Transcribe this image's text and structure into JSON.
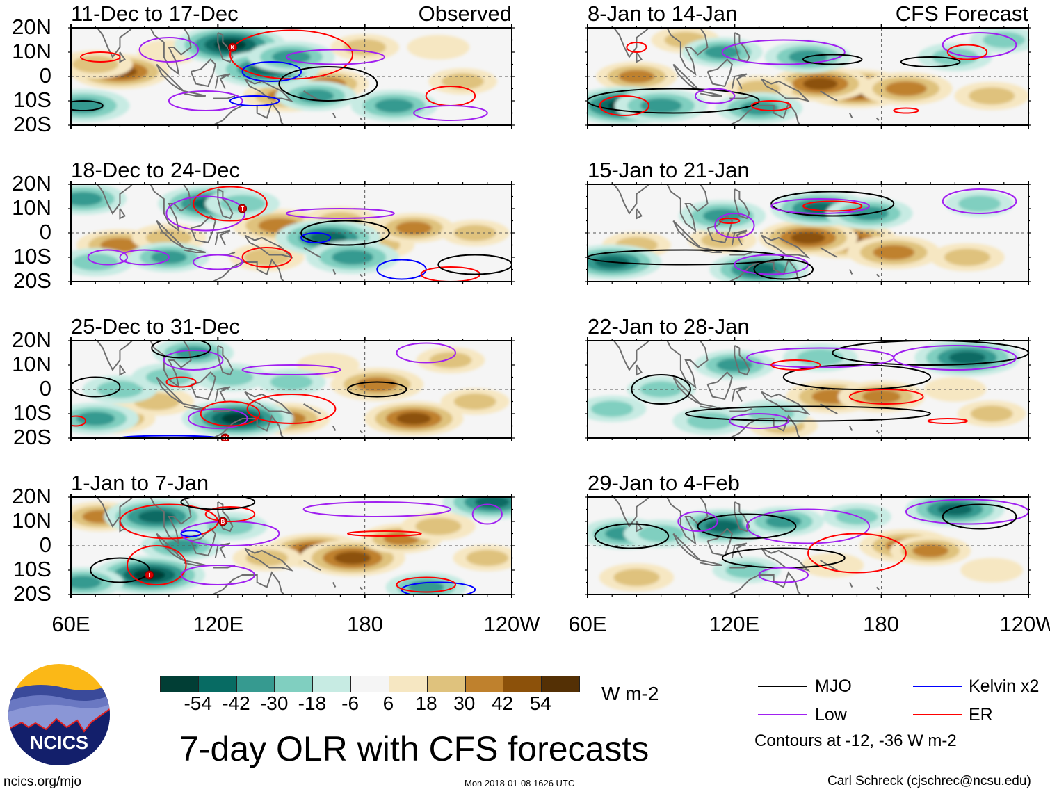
{
  "lat_labels": [
    "20N",
    "10N",
    "0",
    "10S",
    "20S"
  ],
  "lon_labels": [
    "60E",
    "120E",
    "180",
    "120W"
  ],
  "panels": [
    {
      "title": "11-Dec to 17-Dec",
      "tag": "Observed",
      "features": [
        [
          80,
          2,
          45
        ],
        [
          70,
          5,
          25
        ],
        [
          100,
          10,
          15
        ],
        [
          148,
          -8,
          35
        ],
        [
          165,
          -3,
          30
        ],
        [
          220,
          -2,
          20
        ],
        [
          125,
          13,
          -55
        ],
        [
          140,
          3,
          -50
        ],
        [
          150,
          8,
          -35
        ],
        [
          160,
          -8,
          -30
        ],
        [
          192,
          -12,
          -35
        ],
        [
          65,
          -12,
          -40
        ],
        [
          180,
          12,
          20
        ],
        [
          210,
          12,
          15
        ]
      ],
      "contours": [
        [
          "er",
          72,
          8,
          8,
          2
        ],
        [
          "er",
          150,
          9,
          25,
          10
        ],
        [
          "low",
          100,
          11,
          12,
          5
        ],
        [
          "low",
          115,
          -10,
          15,
          4
        ],
        [
          "kelvin",
          142,
          2,
          12,
          4
        ],
        [
          "kelvin",
          135,
          -10,
          10,
          2
        ],
        [
          "mjo",
          165,
          -3,
          20,
          7
        ],
        [
          "low",
          168,
          8,
          20,
          3
        ],
        [
          "mjo",
          65,
          -12,
          8,
          2
        ],
        [
          "er",
          215,
          -8,
          10,
          4
        ],
        [
          "low",
          215,
          -15,
          15,
          3
        ]
      ],
      "storms": [
        [
          "K",
          126,
          12
        ]
      ]
    },
    {
      "title": "18-Dec to 24-Dec",
      "tag": "",
      "features": [
        [
          80,
          -5,
          35
        ],
        [
          100,
          -2,
          25
        ],
        [
          145,
          3,
          40
        ],
        [
          170,
          5,
          25
        ],
        [
          185,
          -5,
          25
        ],
        [
          200,
          2,
          30
        ],
        [
          225,
          0,
          20
        ],
        [
          140,
          -10,
          25
        ],
        [
          117,
          12,
          -50
        ],
        [
          65,
          14,
          -35
        ],
        [
          130,
          12,
          -25
        ],
        [
          165,
          -2,
          -50
        ],
        [
          175,
          -10,
          -40
        ],
        [
          100,
          -10,
          -30
        ],
        [
          70,
          -12,
          -25
        ]
      ],
      "contours": [
        [
          "er",
          125,
          12,
          15,
          7
        ],
        [
          "er",
          140,
          -10,
          10,
          4
        ],
        [
          "low",
          90,
          -10,
          10,
          3
        ],
        [
          "low",
          120,
          -12,
          10,
          3
        ],
        [
          "low",
          170,
          8,
          22,
          2
        ],
        [
          "mjo",
          172,
          0,
          18,
          5
        ],
        [
          "kelvin",
          160,
          -2,
          6,
          2
        ],
        [
          "kelvin",
          195,
          -15,
          10,
          4
        ],
        [
          "er",
          215,
          -17,
          12,
          3
        ],
        [
          "mjo",
          225,
          -13,
          15,
          4
        ],
        [
          "low",
          75,
          -10,
          8,
          3
        ],
        [
          "low",
          115,
          8,
          16,
          7
        ]
      ],
      "storms": [
        [
          "T",
          130,
          10
        ]
      ]
    },
    {
      "title": "25-Dec to 31-Dec",
      "tag": "",
      "features": [
        [
          78,
          -12,
          30
        ],
        [
          95,
          -5,
          25
        ],
        [
          148,
          -12,
          35
        ],
        [
          185,
          2,
          40
        ],
        [
          200,
          -12,
          45
        ],
        [
          215,
          12,
          20
        ],
        [
          165,
          10,
          15
        ],
        [
          225,
          -5,
          20
        ],
        [
          128,
          -12,
          -55
        ],
        [
          110,
          15,
          -30
        ],
        [
          70,
          -12,
          -35
        ],
        [
          80,
          0,
          -25
        ],
        [
          100,
          5,
          -25
        ],
        [
          125,
          5,
          -25
        ],
        [
          150,
          3,
          -20
        ]
      ],
      "contours": [
        [
          "low",
          120,
          -12,
          12,
          4
        ],
        [
          "er",
          125,
          -10,
          12,
          5
        ],
        [
          "low",
          110,
          12,
          12,
          4
        ],
        [
          "low",
          150,
          8,
          20,
          2
        ],
        [
          "mjo",
          70,
          1,
          10,
          4
        ],
        [
          "mjo",
          185,
          0,
          12,
          3
        ],
        [
          "er",
          150,
          -8,
          18,
          6
        ],
        [
          "er",
          105,
          3,
          6,
          2
        ],
        [
          "er",
          62,
          -13,
          4,
          2
        ],
        [
          "low",
          205,
          15,
          12,
          4
        ],
        [
          "kelvin",
          100,
          -20,
          20,
          1
        ],
        [
          "mjo",
          105,
          17,
          12,
          4
        ]
      ],
      "storms": [
        [
          "H",
          123,
          -20
        ]
      ]
    },
    {
      "title": "1-Jan to 7-Jan",
      "tag": "",
      "features": [
        [
          72,
          12,
          30
        ],
        [
          160,
          -2,
          45
        ],
        [
          175,
          -5,
          50
        ],
        [
          195,
          3,
          30
        ],
        [
          210,
          8,
          25
        ],
        [
          140,
          -5,
          20
        ],
        [
          230,
          -5,
          20
        ],
        [
          95,
          12,
          -50
        ],
        [
          92,
          -12,
          -55
        ],
        [
          105,
          0,
          -30
        ],
        [
          125,
          8,
          -25
        ],
        [
          232,
          18,
          -45
        ],
        [
          65,
          -15,
          -30
        ],
        [
          205,
          -17,
          -30
        ]
      ],
      "contours": [
        [
          "er",
          100,
          10,
          20,
          7
        ],
        [
          "low",
          125,
          5,
          20,
          5
        ],
        [
          "er",
          125,
          13,
          10,
          3
        ],
        [
          "kelvin",
          109,
          5,
          4,
          1.2
        ],
        [
          "mjo",
          80,
          -10,
          12,
          5
        ],
        [
          "er",
          95,
          -8,
          12,
          8
        ],
        [
          "low",
          120,
          -12,
          15,
          4
        ],
        [
          "er",
          188,
          5,
          15,
          1
        ],
        [
          "kelvin",
          210,
          -18,
          15,
          3
        ],
        [
          "er",
          205,
          -16,
          12,
          3
        ],
        [
          "low",
          185,
          15,
          30,
          3
        ],
        [
          "low",
          230,
          13,
          6,
          4
        ],
        [
          "mjo",
          120,
          18,
          15,
          3
        ]
      ],
      "storms": [
        [
          "B",
          122,
          10
        ],
        [
          "I",
          92,
          -12
        ]
      ]
    },
    {
      "title": "8-Jan to 14-Jan",
      "tag": "CFS Forecast",
      "features": [
        [
          170,
          -5,
          55
        ],
        [
          155,
          -3,
          45
        ],
        [
          190,
          -5,
          40
        ],
        [
          80,
          0,
          30
        ],
        [
          225,
          -8,
          25
        ],
        [
          100,
          15,
          20
        ],
        [
          130,
          -5,
          20
        ],
        [
          75,
          -12,
          -55
        ],
        [
          90,
          -12,
          -40
        ],
        [
          150,
          8,
          -35
        ],
        [
          130,
          -13,
          -35
        ],
        [
          210,
          8,
          -25
        ],
        [
          115,
          10,
          -30
        ],
        [
          230,
          15,
          -20
        ]
      ],
      "contours": [
        [
          "mjo",
          95,
          -10,
          35,
          5
        ],
        [
          "er",
          75,
          -12,
          10,
          4
        ],
        [
          "low",
          140,
          10,
          25,
          5
        ],
        [
          "mjo",
          160,
          7,
          12,
          2
        ],
        [
          "mjo",
          200,
          6,
          12,
          2
        ],
        [
          "low",
          220,
          13,
          15,
          5
        ],
        [
          "er",
          215,
          10,
          8,
          3
        ],
        [
          "er",
          135,
          -12,
          8,
          2
        ],
        [
          "er",
          190,
          -14,
          5,
          1
        ],
        [
          "low",
          112,
          -8,
          8,
          3
        ],
        [
          "er",
          80,
          12,
          4,
          2
        ]
      ],
      "storms": []
    },
    {
      "title": "15-Jan to 21-Jan",
      "tag": "",
      "features": [
        [
          165,
          -3,
          50
        ],
        [
          150,
          -2,
          45
        ],
        [
          185,
          -8,
          40
        ],
        [
          115,
          -3,
          20
        ],
        [
          80,
          -5,
          20
        ],
        [
          215,
          -10,
          25
        ],
        [
          155,
          10,
          -45
        ],
        [
          175,
          8,
          -35
        ],
        [
          115,
          7,
          -35
        ],
        [
          70,
          -12,
          -45
        ],
        [
          130,
          -15,
          -45
        ],
        [
          220,
          12,
          -20
        ]
      ],
      "contours": [
        [
          "mjo",
          160,
          12,
          25,
          5
        ],
        [
          "er",
          160,
          11,
          12,
          2
        ],
        [
          "low",
          155,
          11,
          20,
          3
        ],
        [
          "mjo",
          100,
          -10,
          40,
          3
        ],
        [
          "low",
          135,
          -13,
          15,
          4
        ],
        [
          "mjo",
          140,
          -15,
          12,
          4
        ],
        [
          "low",
          220,
          13,
          15,
          5
        ],
        [
          "low",
          120,
          3,
          8,
          5
        ],
        [
          "er",
          118,
          5,
          4,
          1
        ]
      ],
      "storms": []
    },
    {
      "title": "22-Jan to 28-Jan",
      "tag": "",
      "features": [
        [
          160,
          -3,
          40
        ],
        [
          180,
          -3,
          35
        ],
        [
          140,
          -15,
          20
        ],
        [
          210,
          0,
          15
        ],
        [
          225,
          -10,
          20
        ],
        [
          215,
          13,
          -50
        ],
        [
          120,
          10,
          -30
        ],
        [
          155,
          13,
          -25
        ],
        [
          110,
          -13,
          -25
        ],
        [
          135,
          -10,
          -25
        ],
        [
          90,
          0,
          -20
        ],
        [
          70,
          -8,
          -20
        ]
      ],
      "contours": [
        [
          "mjo",
          200,
          15,
          40,
          5
        ],
        [
          "mjo",
          170,
          5,
          30,
          5
        ],
        [
          "low",
          155,
          13,
          30,
          4
        ],
        [
          "low",
          210,
          13,
          25,
          5
        ],
        [
          "er",
          145,
          10,
          10,
          2
        ],
        [
          "er",
          182,
          -3,
          15,
          3
        ],
        [
          "mjo",
          150,
          -10,
          50,
          3
        ],
        [
          "mjo",
          90,
          0,
          12,
          6
        ],
        [
          "low",
          130,
          -13,
          12,
          3
        ],
        [
          "er",
          207,
          -13,
          8,
          1
        ]
      ],
      "storms": []
    },
    {
      "title": "29-Jan to 4-Feb",
      "tag": "",
      "features": [
        [
          190,
          0,
          40
        ],
        [
          200,
          -2,
          30
        ],
        [
          80,
          -13,
          25
        ],
        [
          160,
          -8,
          15
        ],
        [
          225,
          -10,
          15
        ],
        [
          115,
          8,
          -45
        ],
        [
          140,
          10,
          -30
        ],
        [
          210,
          15,
          -45
        ],
        [
          75,
          5,
          -35
        ],
        [
          90,
          5,
          -25
        ],
        [
          170,
          12,
          -20
        ],
        [
          125,
          -10,
          -20
        ]
      ],
      "contours": [
        [
          "mjo",
          78,
          4,
          15,
          5
        ],
        [
          "low",
          150,
          8,
          25,
          7
        ],
        [
          "mjo",
          125,
          8,
          20,
          5
        ],
        [
          "mjo",
          140,
          -5,
          25,
          4
        ],
        [
          "er",
          170,
          -3,
          20,
          8
        ],
        [
          "low",
          215,
          14,
          25,
          5
        ],
        [
          "mjo",
          220,
          12,
          15,
          5
        ],
        [
          "low",
          140,
          -12,
          10,
          3
        ],
        [
          "low",
          105,
          10,
          8,
          4
        ]
      ],
      "storms": []
    }
  ],
  "colorbar": {
    "colors": [
      "#013e35",
      "#076b63",
      "#369a90",
      "#80cfc0",
      "#c7ebe3",
      "#f5f5f5",
      "#f6e7c2",
      "#dfc27d",
      "#bf812d",
      "#8c510a",
      "#543005"
    ],
    "labels": [
      "-54",
      "-42",
      "-30",
      "-18",
      "-6",
      "6",
      "18",
      "30",
      "42",
      "54"
    ],
    "units": "W m-2"
  },
  "title": "7-day OLR with CFS forecasts",
  "logo_text": "NCICS",
  "url": "ncics.org/mjo",
  "timestamp": "Mon 2018-01-08 1626 UTC",
  "legend": {
    "items": [
      {
        "key": "mjo",
        "label": "MJO",
        "color": "#000000"
      },
      {
        "key": "kelvin",
        "label": "Kelvin x2",
        "color": "#0000ff"
      },
      {
        "key": "low",
        "label": "Low",
        "color": "#a020f0"
      },
      {
        "key": "er",
        "label": "ER",
        "color": "#ff0000"
      }
    ],
    "note": "Contours at -12, -36 W m-2"
  },
  "credit": "Carl Schreck (cjschrec@ncsu.edu)",
  "storm_color": "#d40000"
}
